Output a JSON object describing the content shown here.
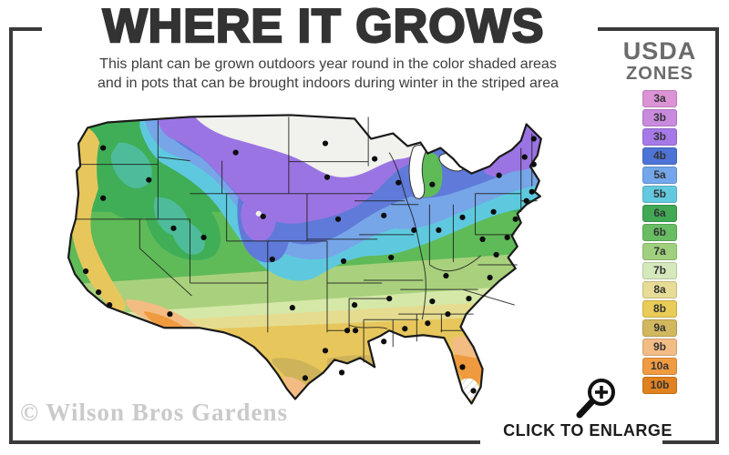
{
  "header": {
    "title": "WHERE IT GROWS",
    "subtitle_line1": "This plant can be grown outdoors year round in the color shaded areas",
    "subtitle_line2": "and in pots that can be brought indoors during winter in the striped area"
  },
  "legend": {
    "title_line1": "USDA",
    "title_line2": "ZONES",
    "zones": [
      {
        "label": "3a",
        "color": "#DB93D6"
      },
      {
        "label": "3b",
        "color": "#C98ADE"
      },
      {
        "label": "3b",
        "color": "#A678E8"
      },
      {
        "label": "4b",
        "color": "#4E73D6"
      },
      {
        "label": "5a",
        "color": "#73A6EA"
      },
      {
        "label": "5b",
        "color": "#63C9DE"
      },
      {
        "label": "6a",
        "color": "#41A854"
      },
      {
        "label": "6b",
        "color": "#68BD62"
      },
      {
        "label": "7a",
        "color": "#A0CF7E"
      },
      {
        "label": "7b",
        "color": "#D6E9BD"
      },
      {
        "label": "8a",
        "color": "#E6DC96"
      },
      {
        "label": "8b",
        "color": "#E9CB57"
      },
      {
        "label": "9a",
        "color": "#D1B75E"
      },
      {
        "label": "9b",
        "color": "#F2BC85"
      },
      {
        "label": "10a",
        "color": "#F09B41"
      },
      {
        "label": "10b",
        "color": "#E08220"
      }
    ]
  },
  "map": {
    "colors": {
      "green": "#3FAE57",
      "green_mid": "#5FBA58",
      "green_yellow": "#A9D17D",
      "pale_green": "#D5E8A8",
      "pale_yellow": "#E6DC90",
      "gold": "#E7C75C",
      "khaki": "#CFB35A",
      "peach": "#F3BC82",
      "orange": "#EF9A3E",
      "cyan": "#5EC9DE",
      "light_blue": "#76A5E8",
      "blue": "#5F7AD9",
      "purple": "#9B74E3",
      "white_cold": "#F1F1ED",
      "water": "#FFFFFF"
    },
    "city_dots": [
      [
        55,
        50
      ],
      [
        55,
        105
      ],
      [
        36,
        185
      ],
      [
        50,
        208
      ],
      [
        62,
        222
      ],
      [
        105,
        85
      ],
      [
        200,
        55
      ],
      [
        230,
        125
      ],
      [
        132,
        138
      ],
      [
        165,
        148
      ],
      [
        240,
        172
      ],
      [
        128,
        232
      ],
      [
        262,
        225
      ],
      [
        298,
        45
      ],
      [
        300,
        82
      ],
      [
        312,
        128
      ],
      [
        318,
        174
      ],
      [
        330,
        222
      ],
      [
        352,
        62
      ],
      [
        378,
        88
      ],
      [
        362,
        124
      ],
      [
        370,
        170
      ],
      [
        368,
        215
      ],
      [
        362,
        262
      ],
      [
        395,
        140
      ],
      [
        422,
        140
      ],
      [
        448,
        126
      ],
      [
        430,
        190
      ],
      [
        415,
        218
      ],
      [
        385,
        248
      ],
      [
        410,
        242
      ],
      [
        432,
        232
      ],
      [
        470,
        150
      ],
      [
        485,
        167
      ],
      [
        497,
        148
      ],
      [
        482,
        120
      ],
      [
        488,
        80
      ],
      [
        506,
        128
      ],
      [
        518,
        108
      ],
      [
        524,
        98
      ],
      [
        516,
        60
      ],
      [
        526,
        68
      ],
      [
        526,
        40
      ],
      [
        478,
        192
      ],
      [
        455,
        215
      ],
      [
        448,
        290
      ],
      [
        460,
        316
      ],
      [
        322,
        250
      ],
      [
        331,
        250
      ],
      [
        298,
        272
      ],
      [
        316,
        296
      ],
      [
        276,
        302
      ],
      [
        415,
        90
      ]
    ]
  },
  "footer": {
    "watermark": "© Wilson Bros Gardens",
    "enlarge_label": "CLICK TO ENLARGE"
  }
}
